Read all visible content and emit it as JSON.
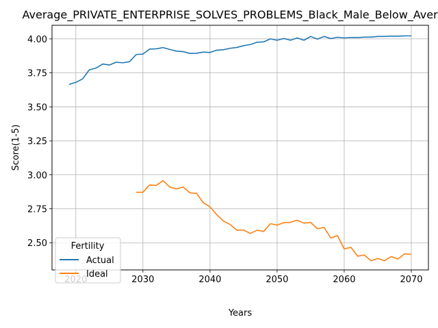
{
  "chart_data": {
    "type": "line",
    "title": "Average_PRIVATE_ENTERPRISE_SOLVES_PROBLEMS_Black_Male_Below_Average",
    "xlabel": "Years",
    "ylabel": "Score(1-5)",
    "xlim": [
      2016.45,
      2072.55
    ],
    "ylim": [
      2.3,
      4.1
    ],
    "xticks": [
      2020,
      2030,
      2040,
      2050,
      2060,
      2070
    ],
    "yticks": [
      2.5,
      2.75,
      3.0,
      3.25,
      3.5,
      3.75,
      4.0
    ],
    "ytick_labels": [
      "2.50",
      "2.75",
      "3.00",
      "3.25",
      "3.50",
      "3.75",
      "4.00"
    ],
    "grid": true,
    "legend": {
      "title": "Fertility",
      "position": "lower-left"
    },
    "series": [
      {
        "name": "Actual",
        "color": "#1f77b4",
        "x": [
          2019,
          2020,
          2021,
          2022,
          2023,
          2024,
          2025,
          2026,
          2027,
          2028,
          2029,
          2030,
          2031,
          2032,
          2033,
          2034,
          2035,
          2036,
          2037,
          2038,
          2039,
          2040,
          2041,
          2042,
          2043,
          2044,
          2045,
          2046,
          2047,
          2048,
          2049,
          2050,
          2051,
          2052,
          2053,
          2054,
          2055,
          2056,
          2057,
          2058,
          2059,
          2060,
          2061,
          2062,
          2063,
          2064,
          2065,
          2066,
          2067,
          2068,
          2069,
          2070
        ],
        "y": [
          3.665,
          3.68,
          3.705,
          3.772,
          3.785,
          3.815,
          3.808,
          3.828,
          3.824,
          3.832,
          3.885,
          3.888,
          3.925,
          3.927,
          3.936,
          3.922,
          3.91,
          3.906,
          3.893,
          3.894,
          3.903,
          3.9,
          3.917,
          3.92,
          3.931,
          3.937,
          3.95,
          3.958,
          3.975,
          3.978,
          4.0,
          3.99,
          4.003,
          3.99,
          4.007,
          3.99,
          4.018,
          3.998,
          4.018,
          4.002,
          4.012,
          4.007,
          4.01,
          4.01,
          4.013,
          4.013,
          4.018,
          4.018,
          4.02,
          4.02,
          4.022,
          4.022
        ]
      },
      {
        "name": "Ideal",
        "color": "#ff7f0e",
        "x": [
          2029,
          2030,
          2031,
          2032,
          2033,
          2034,
          2035,
          2036,
          2037,
          2038,
          2039,
          2040,
          2041,
          2042,
          2043,
          2044,
          2045,
          2046,
          2047,
          2048,
          2049,
          2050,
          2051,
          2052,
          2053,
          2054,
          2055,
          2056,
          2057,
          2058,
          2059,
          2060,
          2061,
          2062,
          2063,
          2064,
          2065,
          2066,
          2067,
          2068,
          2069,
          2070
        ],
        "y": [
          2.871,
          2.871,
          2.925,
          2.922,
          2.957,
          2.91,
          2.896,
          2.91,
          2.867,
          2.863,
          2.794,
          2.765,
          2.706,
          2.66,
          2.634,
          2.592,
          2.594,
          2.568,
          2.592,
          2.583,
          2.64,
          2.63,
          2.648,
          2.65,
          2.666,
          2.644,
          2.65,
          2.603,
          2.613,
          2.535,
          2.552,
          2.455,
          2.466,
          2.401,
          2.41,
          2.367,
          2.385,
          2.367,
          2.398,
          2.38,
          2.418,
          2.415
        ]
      }
    ]
  }
}
